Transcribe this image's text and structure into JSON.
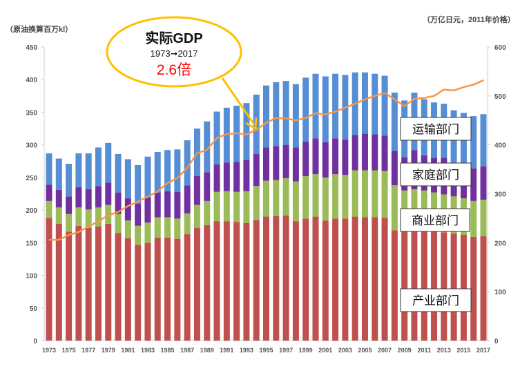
{
  "chart_data": {
    "type": "bar",
    "stacked": true,
    "left_axis": {
      "label": "（原油换算百万kl）",
      "ylim": [
        0,
        450
      ],
      "ticks": [
        0,
        50,
        100,
        150,
        200,
        250,
        300,
        350,
        400,
        450
      ]
    },
    "right_axis": {
      "label": "（万亿日元，2011年价格）",
      "ylim": [
        0,
        600
      ],
      "ticks": [
        0,
        100,
        200,
        300,
        400,
        500,
        600
      ]
    },
    "categories": [
      1973,
      1974,
      1975,
      1976,
      1977,
      1978,
      1979,
      1980,
      1981,
      1982,
      1983,
      1984,
      1985,
      1986,
      1987,
      1988,
      1989,
      1990,
      1991,
      1992,
      1993,
      1994,
      1995,
      1996,
      1997,
      1998,
      1999,
      2000,
      2001,
      2002,
      2003,
      2004,
      2005,
      2006,
      2007,
      2008,
      2009,
      2010,
      2011,
      2012,
      2013,
      2014,
      2015,
      2016,
      2017
    ],
    "x_tick_labels": [
      "1973",
      "1975",
      "1977",
      "1979",
      "1981",
      "1983",
      "1985",
      "1987",
      "1989",
      "1991",
      "1993",
      "1995",
      "1997",
      "1999",
      "2001",
      "2003",
      "2005",
      "2007",
      "2009",
      "2011",
      "2013",
      "2015",
      "2017"
    ],
    "series": [
      {
        "name": "产业部门",
        "color": "#c0504d",
        "values": [
          188,
          179,
          167,
          176,
          173,
          175,
          179,
          165,
          157,
          147,
          150,
          158,
          158,
          156,
          163,
          173,
          177,
          183,
          183,
          182,
          180,
          185,
          190,
          191,
          192,
          183,
          187,
          190,
          184,
          187,
          187,
          190,
          189,
          189,
          188,
          169,
          168,
          170,
          170,
          167,
          166,
          164,
          162,
          159,
          160
        ]
      },
      {
        "name": "商业部门",
        "color": "#9bbb59",
        "values": [
          26,
          25,
          27,
          28,
          28,
          29,
          29,
          29,
          27,
          29,
          31,
          31,
          31,
          31,
          32,
          35,
          37,
          45,
          46,
          46,
          49,
          52,
          55,
          55,
          57,
          61,
          65,
          65,
          66,
          68,
          67,
          71,
          72,
          72,
          72,
          69,
          62,
          62,
          60,
          60,
          58,
          57,
          56,
          55,
          56
        ]
      },
      {
        "name": "家庭部门",
        "color": "#7030a0",
        "values": [
          25,
          27,
          27,
          31,
          31,
          33,
          34,
          33,
          34,
          34,
          39,
          38,
          40,
          41,
          43,
          44,
          44,
          42,
          44,
          46,
          48,
          49,
          51,
          52,
          51,
          52,
          53,
          55,
          54,
          55,
          54,
          54,
          56,
          55,
          54,
          53,
          51,
          60,
          54,
          53,
          56,
          50,
          47,
          50,
          51
        ]
      },
      {
        "name": "运输部门",
        "color": "#558ed5",
        "values": [
          48,
          48,
          50,
          52,
          55,
          59,
          61,
          59,
          60,
          59,
          62,
          62,
          63,
          65,
          69,
          73,
          78,
          81,
          84,
          86,
          87,
          91,
          95,
          98,
          98,
          97,
          98,
          99,
          101,
          99,
          99,
          96,
          94,
          93,
          92,
          89,
          87,
          88,
          86,
          85,
          83,
          82,
          84,
          80,
          80
        ]
      }
    ],
    "line": {
      "name": "实际GDP",
      "axis": "right",
      "color": "#f79646",
      "values": [
        206,
        206,
        216,
        222,
        233,
        244,
        256,
        263,
        275,
        284,
        294,
        305,
        322,
        332,
        353,
        383,
        390,
        414,
        422,
        424,
        421,
        431,
        445,
        455,
        454,
        450,
        455,
        465,
        462,
        468,
        476,
        484,
        493,
        500,
        506,
        493,
        479,
        494,
        496,
        500,
        513,
        511,
        518,
        523,
        532
      ]
    },
    "callout": {
      "title": "实际GDP",
      "period": "1973➞2017",
      "ratio": "2.6倍",
      "border_color": "#ffc000",
      "ratio_color": "#ff0000"
    },
    "sector_labels": [
      "运输部门",
      "家庭部门",
      "商业部门",
      "产业部门"
    ]
  }
}
